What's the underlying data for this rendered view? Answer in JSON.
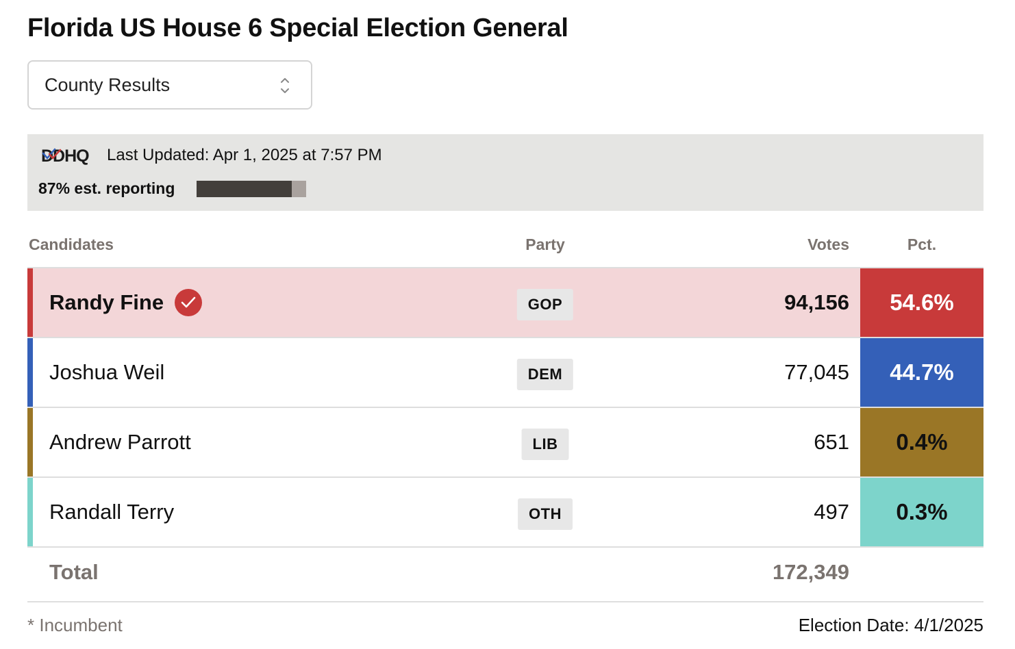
{
  "title": "Florida US House 6 Special Election General",
  "view_select": {
    "selected": "County Results"
  },
  "info": {
    "logo_text": "DDHQ",
    "last_updated": "Last Updated: Apr 1, 2025 at 7:57 PM",
    "reporting_label": "87% est. reporting",
    "reporting_fraction": 0.87
  },
  "table": {
    "headers": {
      "candidates": "Candidates",
      "party": "Party",
      "votes": "Votes",
      "pct": "Pct."
    },
    "rows": [
      {
        "name": "Randy Fine",
        "party": "GOP",
        "votes": "94,156",
        "pct": "54.6%",
        "winner": true,
        "color": "#c83a3a",
        "pct_text_color": "#ffffff"
      },
      {
        "name": "Joshua Weil",
        "party": "DEM",
        "votes": "77,045",
        "pct": "44.7%",
        "winner": false,
        "color": "#3460b8",
        "pct_text_color": "#ffffff"
      },
      {
        "name": "Andrew Parrott",
        "party": "LIB",
        "votes": "651",
        "pct": "0.4%",
        "winner": false,
        "color": "#9a7626",
        "pct_text_color": "#111111"
      },
      {
        "name": "Randall Terry",
        "party": "OTH",
        "votes": "497",
        "pct": "0.3%",
        "winner": false,
        "color": "#7dd4cb",
        "pct_text_color": "#111111"
      }
    ],
    "total_label": "Total",
    "total_votes": "172,349"
  },
  "footer": {
    "incumbent_note": "* Incumbent",
    "election_date": "Election Date: 4/1/2025"
  },
  "icons": {
    "select": "chevron-updown-icon",
    "winner": "check-circle-icon",
    "logo": "ddhq-logo"
  }
}
